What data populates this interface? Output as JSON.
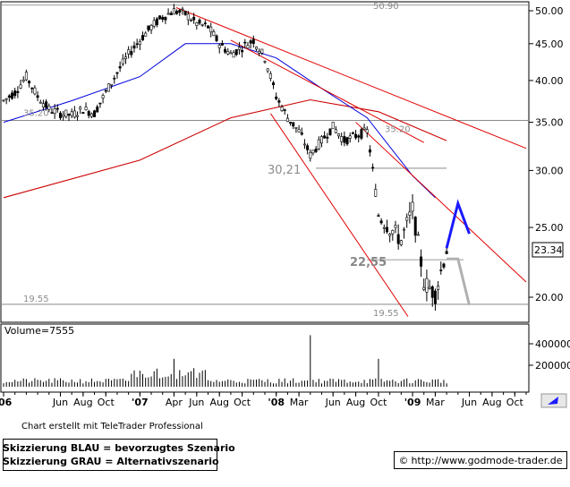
{
  "chart_data": {
    "type": "candlestick",
    "price_axis": {
      "scale": "log",
      "ticks": [
        "20.00",
        "25.00",
        "30.00",
        "35.00",
        "40.00",
        "45.00",
        "50.00"
      ]
    },
    "volume_axis": {
      "ticks": [
        "200000",
        "400000"
      ]
    },
    "time_axis": {
      "labels": [
        "'06",
        "Jun",
        "Aug",
        "Oct",
        "'07",
        "Apr",
        "Jun",
        "Aug",
        "Oct",
        "'08",
        "Mar",
        "Jun",
        "Aug",
        "Oct",
        "'09",
        "Mar",
        "Jun",
        "Aug",
        "Oct"
      ]
    },
    "volume_label": "Volume=7555",
    "last_price": "23.34",
    "levels": [
      {
        "value": 50.9,
        "label": "50.90"
      },
      {
        "value": 35.2,
        "label": "35.20"
      },
      {
        "value": 19.55,
        "label": "19.55"
      }
    ],
    "annotations": [
      "30,21",
      "22,55"
    ],
    "price_path": [
      [
        "Jan 2006",
        37.5
      ],
      [
        "Feb 2006",
        38.5
      ],
      [
        "Mar 2006",
        40.5
      ],
      [
        "Apr 2006",
        38.0
      ],
      [
        "May 2006",
        36.5
      ],
      [
        "Jun 2006",
        36.0
      ],
      [
        "Jul 2006",
        35.8
      ],
      [
        "Aug 2006",
        36.5
      ],
      [
        "Sep 2006",
        36.0
      ],
      [
        "Oct 2006",
        38.5
      ],
      [
        "Nov 2006",
        41.0
      ],
      [
        "Dec 2006",
        43.5
      ],
      [
        "Jan 2007",
        45.5
      ],
      [
        "Feb 2007",
        47.5
      ],
      [
        "Mar 2007",
        49.0
      ],
      [
        "Apr 2007",
        50.0
      ],
      [
        "May 2007",
        49.5
      ],
      [
        "Jun 2007",
        48.0
      ],
      [
        "Jul 2007",
        47.5
      ],
      [
        "Aug 2007",
        45.0
      ],
      [
        "Sep 2007",
        43.5
      ],
      [
        "Oct 2007",
        44.5
      ],
      [
        "Nov 2007",
        45.5
      ],
      [
        "Dec 2007",
        43.0
      ],
      [
        "Jan 2008",
        38.0
      ],
      [
        "Feb 2008",
        35.5
      ],
      [
        "Mar 2008",
        34.0
      ],
      [
        "Apr 2008",
        31.5
      ],
      [
        "May 2008",
        33.0
      ],
      [
        "Jun 2008",
        34.5
      ],
      [
        "Jul 2008",
        33.0
      ],
      [
        "Aug 2008",
        33.5
      ],
      [
        "Sep 2008",
        34.0
      ],
      [
        "Oct 2008",
        26.0
      ],
      [
        "Nov 2008",
        25.0
      ],
      [
        "Dec 2008",
        24.0
      ],
      [
        "Jan 2009",
        26.5
      ],
      [
        "Feb 2009",
        21.0
      ],
      [
        "Mar 2009",
        20.2
      ],
      [
        "Apr 2009",
        23.3
      ]
    ],
    "ma_short": [
      [
        "Jan 2006",
        35.0
      ],
      [
        "Jul 2006",
        37.5
      ],
      [
        "Jan 2007",
        40.5
      ],
      [
        "May 2007",
        45.0
      ],
      [
        "Sep 2007",
        45.0
      ],
      [
        "Jan 2008",
        43.0
      ],
      [
        "May 2008",
        39.0
      ],
      [
        "Sep 2008",
        35.5
      ],
      [
        "Jan 2009",
        29.5
      ],
      [
        "Mar 2009",
        27.5
      ]
    ],
    "ma_long": [
      [
        "Jan 2006",
        27.5
      ],
      [
        "Jan 2007",
        31.0
      ],
      [
        "Sep 2007",
        35.5
      ],
      [
        "Apr 2008",
        37.6
      ],
      [
        "Oct 2008",
        36.2
      ],
      [
        "Apr 2009",
        33.0
      ]
    ],
    "volume": [
      [
        "Jan 2007",
        150000
      ],
      [
        "Apr 2007",
        260000
      ],
      [
        "Apr 2008",
        480000
      ],
      [
        "Oct 2008",
        260000
      ]
    ],
    "scenario_blue": [
      [
        "Apr 2009",
        23.4
      ],
      [
        "May 2009",
        27.0
      ],
      [
        "Jun 2009",
        24.5
      ]
    ],
    "scenario_gray": [
      [
        "Apr 2009",
        22.6
      ],
      [
        "May 2009",
        22.6
      ],
      [
        "Jun 2009",
        19.5
      ]
    ]
  },
  "footer": {
    "credit": "Chart erstellt mit TeleTrader Professional",
    "legend_blue": "Skizzierung BLAU = bevorzugtes Szenario",
    "legend_gray": "Skizzierung GRAU = Alternativszenario",
    "copyright_symbol": "©",
    "url": "http://www.godmode-trader.de"
  },
  "colors": {
    "price": "#000000",
    "trend": "#e00000",
    "ma_short": "#0000dd",
    "ma_long": "#cc0000",
    "blue": "#1a1aff",
    "gray": "#b0b0b0",
    "volume": "#000000"
  },
  "icons": {
    "scroll": "arrow-cursor-icon"
  }
}
